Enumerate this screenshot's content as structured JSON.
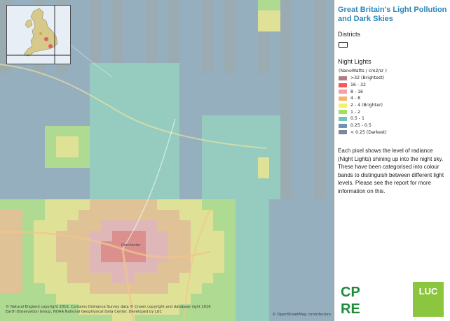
{
  "panel": {
    "title": "Great Britain's Light Pollution and Dark Skies",
    "districts_heading": "Districts",
    "night_lights_heading": "Night Lights",
    "legend_unit": "(NanoWatts / cm2/sr )",
    "legend": [
      {
        "label": ">32 (Brightest)",
        "color": "#b07e86"
      },
      {
        "label": "16 - 32",
        "color": "#ef5a5a"
      },
      {
        "label": "8 - 16",
        "color": "#f5a0a8"
      },
      {
        "label": "4 - 8",
        "color": "#f6b469"
      },
      {
        "label": "2 - 4 (Brighter)",
        "color": "#f6ef6a"
      },
      {
        "label": "1 - 2",
        "color": "#9fe060"
      },
      {
        "label": "0.5 - 1",
        "color": "#6fc6b4"
      },
      {
        "label": "0.25 - 0.5",
        "color": "#6f92b5"
      },
      {
        "label": "< 0.25 (Darkest)",
        "color": "#7a8a9c"
      }
    ],
    "description": "Each pixel shows the level of radiance (Night Lights) shining up into the night sky. These have been categorised into colour bands to distinguish between different light levels. Please see the report for more information on this."
  },
  "map": {
    "town_label": "Dorchester",
    "attribution_left": "© Natural England copyright 2016. Contains Ordnance Survey data © Crown copyright and database right 2016 Earth Observation Group, NOAA National Geophysical Data Center. Developed by LUC",
    "attribution_right": "© OpenStreetMap contributors"
  },
  "logos": {
    "cpre_lines": [
      "CP",
      "RE"
    ],
    "luc": "LUC"
  },
  "colors": {
    "title": "#2e86b8",
    "luc_green": "#8cc63f",
    "cpre_green": "#1f8a3c"
  }
}
